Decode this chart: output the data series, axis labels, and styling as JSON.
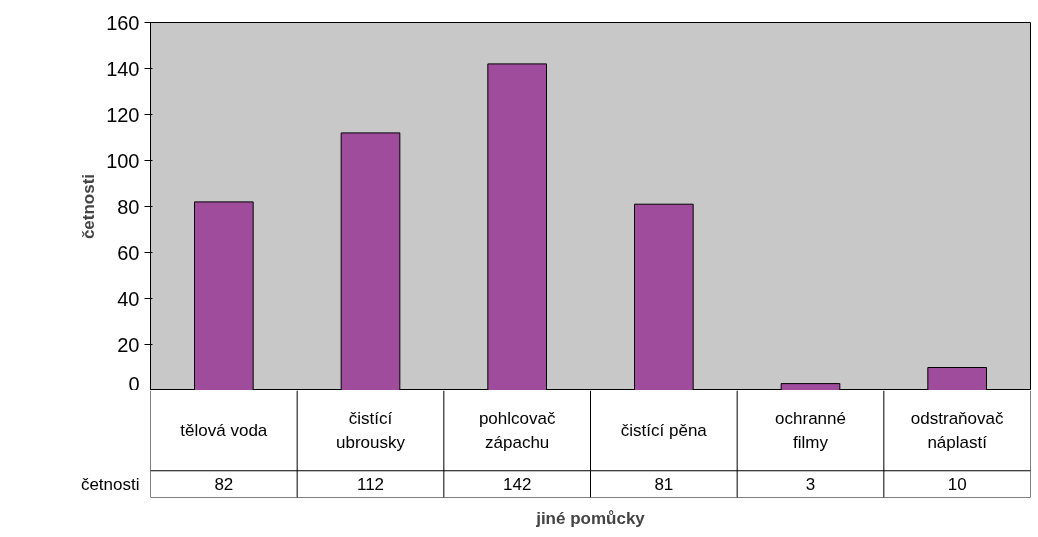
{
  "chart_data": {
    "type": "bar",
    "xlabel": "jiné pomůcky",
    "ylabel": "četnosti",
    "categories": [
      "tělová voda",
      "čistící ubrousky",
      "pohlcovač zápachu",
      "čistící pěna",
      "ochranné filmy",
      "odstraňovač náplastí"
    ],
    "series": [
      {
        "name": "četnosti",
        "color": "#a04c9c",
        "values": [
          82,
          112,
          142,
          81,
          3,
          10
        ]
      }
    ],
    "ylim": [
      0,
      160
    ],
    "yticks": [
      0,
      20,
      40,
      60,
      80,
      100,
      120,
      140,
      160
    ],
    "data_labels": true
  }
}
